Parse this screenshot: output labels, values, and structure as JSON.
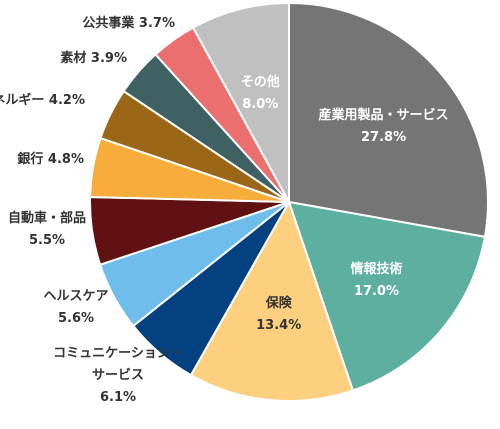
{
  "chart_data": {
    "type": "pie",
    "title": "",
    "start_angle_deg": 0,
    "direction": "clockwise",
    "slices": [
      {
        "label": "産業用製品・サービス",
        "value": 27.8,
        "value_label": "27.8%",
        "color": "#757575",
        "label_color": "#ffffff",
        "label_inside": true
      },
      {
        "label": "情報技術",
        "value": 17.0,
        "value_label": "17.0%",
        "color": "#5dafa0",
        "label_color": "#ffffff",
        "label_inside": true
      },
      {
        "label": "保険",
        "value": 13.4,
        "value_label": "13.4%",
        "color": "#fdd07f",
        "label_color": "#333333",
        "label_inside": true
      },
      {
        "label": "コミュニケーション・サービス",
        "value": 6.1,
        "value_label": "6.1%",
        "color": "#034180",
        "label_color": "#333333",
        "label_inside": false
      },
      {
        "label": "ヘルスケア",
        "value": 5.6,
        "value_label": "5.6%",
        "color": "#6fbdea",
        "label_color": "#333333",
        "label_inside": false
      },
      {
        "label": "自動車・部品",
        "value": 5.5,
        "value_label": "5.5%",
        "color": "#621112",
        "label_color": "#333333",
        "label_inside": false
      },
      {
        "label": "銀行",
        "value": 4.8,
        "value_label": "4.8%",
        "color": "#f6ad3b",
        "label_color": "#333333",
        "label_inside": false
      },
      {
        "label": "エネルギー",
        "value": 4.2,
        "value_label": "4.2%",
        "color": "#9b6716",
        "label_color": "#333333",
        "label_inside": false
      },
      {
        "label": "素材",
        "value": 3.9,
        "value_label": "3.9%",
        "color": "#3f6163",
        "label_color": "#333333",
        "label_inside": false
      },
      {
        "label": "公共事業",
        "value": 3.7,
        "value_label": "3.7%",
        "color": "#ec6f70",
        "label_color": "#333333",
        "label_inside": false
      },
      {
        "label": "その他",
        "value": 8.0,
        "value_label": "8.0%",
        "color": "#c0c0c0",
        "label_color": "#ffffff",
        "label_inside": true
      }
    ]
  }
}
